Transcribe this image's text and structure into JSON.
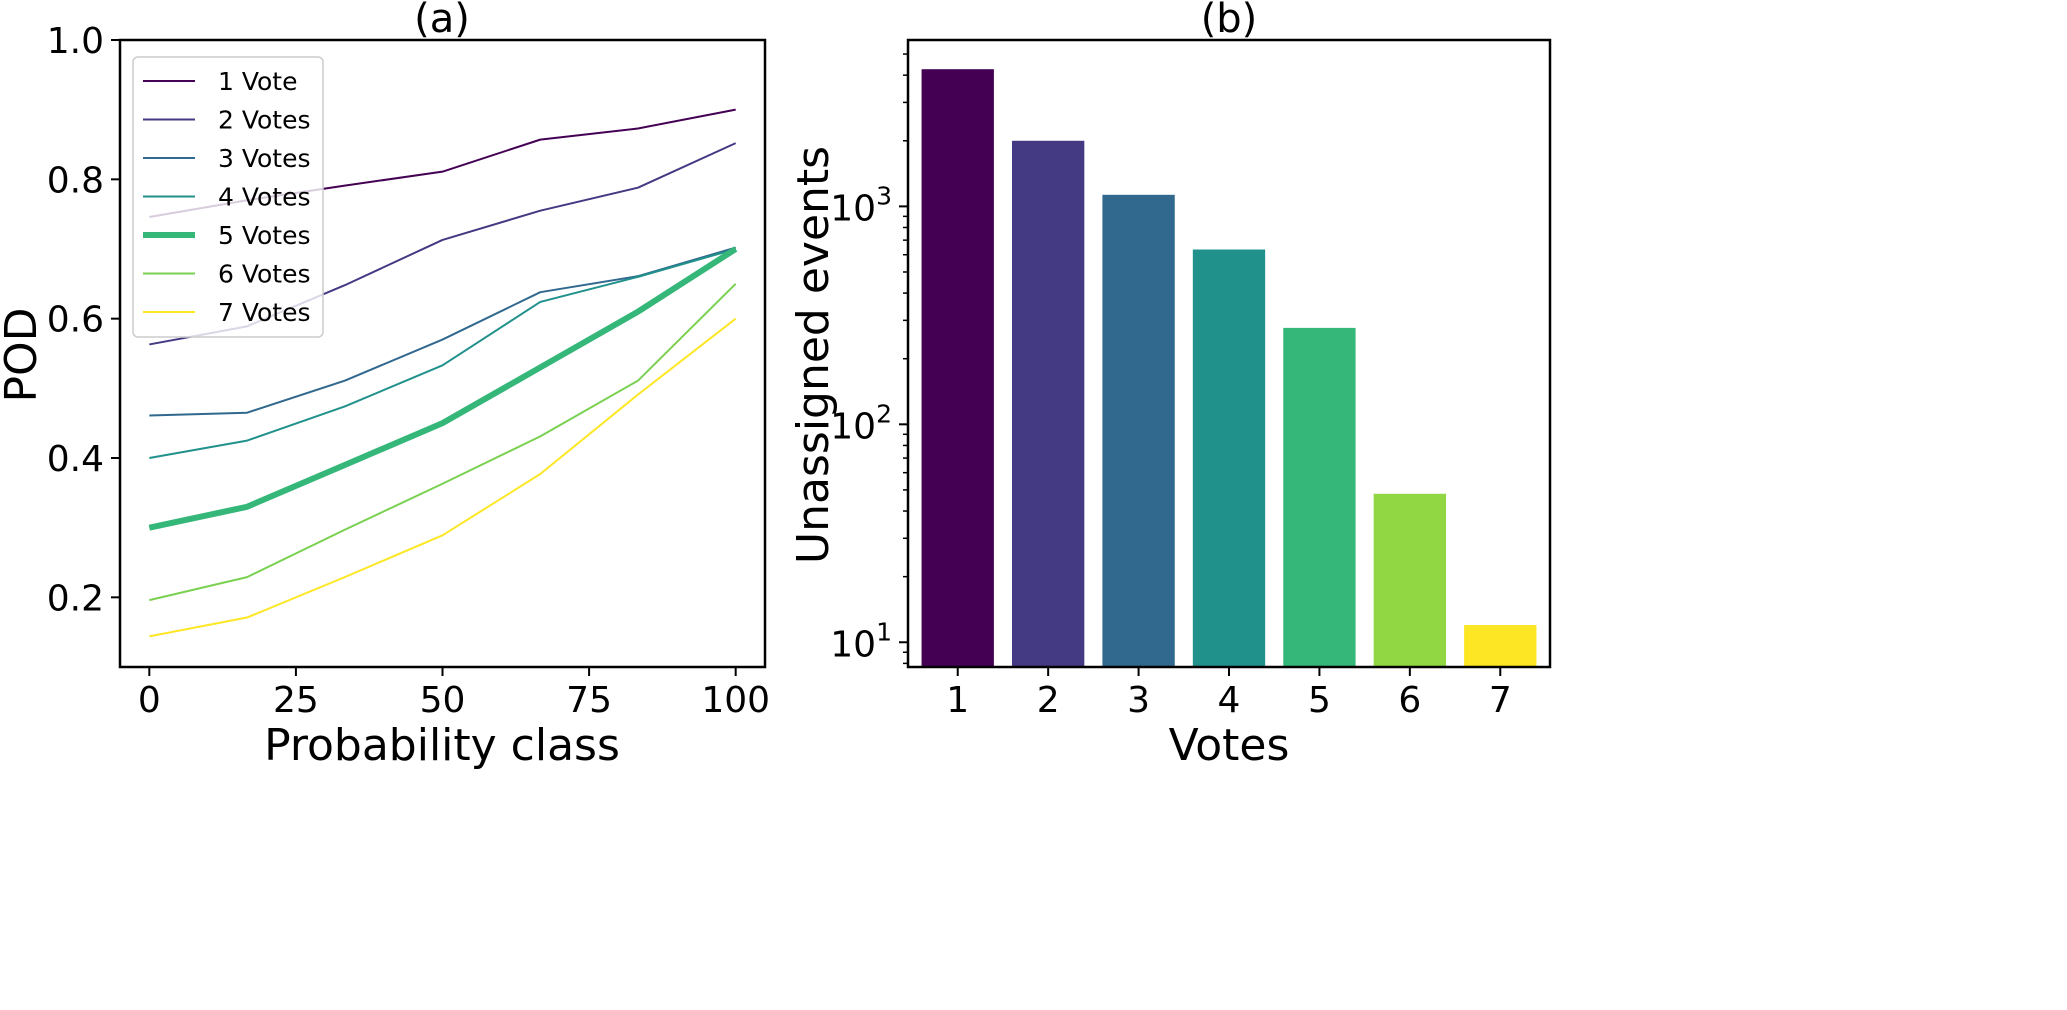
{
  "chart_data": [
    {
      "type": "line",
      "title": "(a)",
      "xlabel": "Probability class",
      "ylabel": "POD",
      "xlim": [
        -5,
        105
      ],
      "ylim": [
        0.1,
        1.0
      ],
      "xticks": [
        0,
        25,
        50,
        75,
        100
      ],
      "xtick_labels": [
        "0",
        "25",
        "50",
        "75",
        "100"
      ],
      "yticks": [
        0.2,
        0.4,
        0.6,
        0.8,
        1.0
      ],
      "ytick_labels": [
        "0.2",
        "0.4",
        "0.6",
        "0.8",
        "1.0"
      ],
      "grid": false,
      "legend_position": "upper-left",
      "x": [
        0,
        16.67,
        33.33,
        50,
        66.67,
        83.33,
        100
      ],
      "series": [
        {
          "name": "1 Vote",
          "color": "#440154",
          "values": [
            0.746,
            0.77,
            0.791,
            0.811,
            0.857,
            0.873,
            0.9
          ]
        },
        {
          "name": "2 Votes",
          "color": "#443983",
          "values": [
            0.563,
            0.589,
            0.648,
            0.713,
            0.755,
            0.788,
            0.852
          ]
        },
        {
          "name": "3 Votes",
          "color": "#31688e",
          "values": [
            0.461,
            0.465,
            0.511,
            0.57,
            0.638,
            0.661,
            0.702
          ]
        },
        {
          "name": "4 Votes",
          "color": "#21918c",
          "values": [
            0.4,
            0.425,
            0.474,
            0.533,
            0.624,
            0.66,
            0.7
          ]
        },
        {
          "name": "5 Votes",
          "color": "#35b779",
          "values": [
            0.3,
            0.33,
            0.39,
            0.45,
            0.53,
            0.61,
            0.7
          ],
          "emphasized": true
        },
        {
          "name": "6 Votes",
          "color": "#7ad151",
          "values": [
            0.196,
            0.229,
            0.297,
            0.363,
            0.431,
            0.511,
            0.65
          ]
        },
        {
          "name": "7 Votes",
          "color": "#fde725",
          "values": [
            0.144,
            0.171,
            0.229,
            0.289,
            0.377,
            0.491,
            0.6
          ]
        }
      ]
    },
    {
      "type": "bar",
      "title": "(b)",
      "xlabel": "Votes",
      "ylabel": "Unassigned events",
      "yscale": "log",
      "xlim": [
        0.45,
        7.55
      ],
      "ylim": [
        7.7,
        5800
      ],
      "categories": [
        "1",
        "2",
        "3",
        "4",
        "5",
        "6",
        "7"
      ],
      "values": [
        4260,
        2000,
        1130,
        634,
        277,
        48,
        12
      ],
      "colors": [
        "#440154",
        "#443983",
        "#31688e",
        "#21918c",
        "#35b779",
        "#90d743",
        "#fde725"
      ],
      "yticks": [
        10,
        100,
        1000
      ],
      "ytick_labels": [
        {
          "base": "10",
          "exp": "1"
        },
        {
          "base": "10",
          "exp": "2"
        },
        {
          "base": "10",
          "exp": "3"
        }
      ],
      "grid": false
    }
  ]
}
